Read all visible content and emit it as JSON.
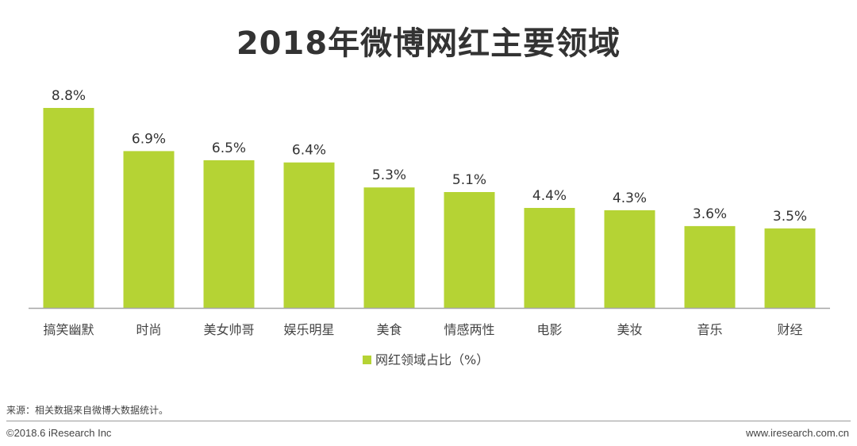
{
  "title": "2018年微博网红主要领域",
  "chart_data": {
    "type": "bar",
    "categories": [
      "搞笑幽默",
      "时尚",
      "美女帅哥",
      "娱乐明星",
      "美食",
      "情感两性",
      "电影",
      "美妆",
      "音乐",
      "财经"
    ],
    "series": [
      {
        "name": "网红领域占比（%）",
        "values": [
          8.8,
          6.9,
          6.5,
          6.4,
          5.3,
          5.1,
          4.4,
          4.3,
          3.6,
          3.5
        ],
        "labels": [
          "8.8%",
          "6.9%",
          "6.5%",
          "6.4%",
          "5.3%",
          "5.1%",
          "4.4%",
          "4.3%",
          "3.6%",
          "3.5%"
        ]
      }
    ],
    "ylim": [
      0,
      8.8
    ],
    "grid": false,
    "legend_position": "bottom",
    "bar_color": "#b5d334"
  },
  "footer": {
    "source": "来源：相关数据来自微博大数据统计。",
    "copyright": "©2018.6 iResearch Inc",
    "website": "www.iresearch.com.cn"
  }
}
